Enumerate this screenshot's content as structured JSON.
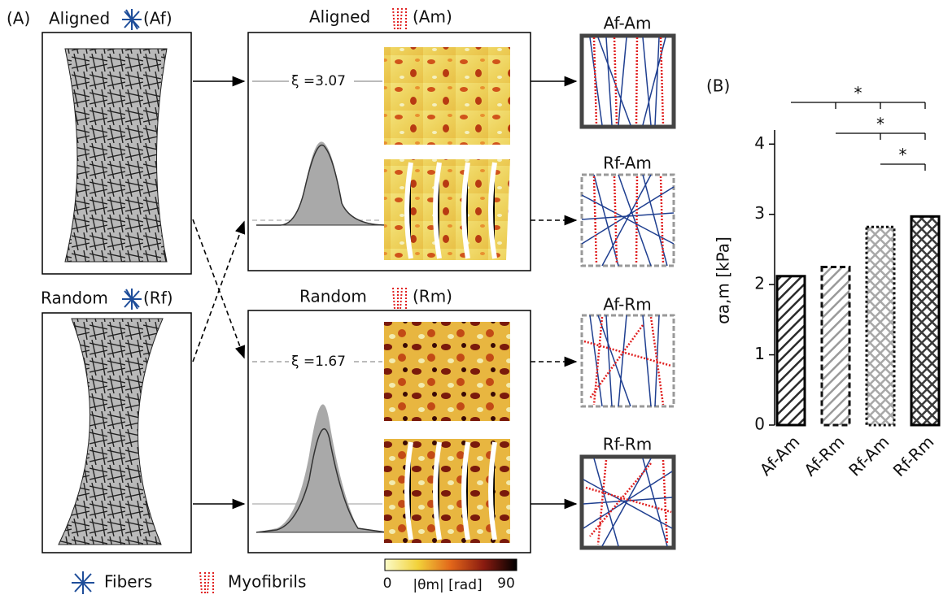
{
  "panel_a": {
    "label": "(A)",
    "aligned_fibers": "Aligned",
    "af": "(Af)",
    "random_fibers": "Random",
    "rf": "(Rf)",
    "aligned_myo": "Aligned",
    "am": "(Am)",
    "random_myo": "Random",
    "rm": "(Rm)",
    "xi_aligned": "ξ =3.07",
    "xi_random": "ξ =1.67",
    "combos": [
      "Af-Am",
      "Rf-Am",
      "Af-Rm",
      "Rf-Rm"
    ],
    "legend": {
      "fibers": "Fibers",
      "myofibrils": "Myofibrils"
    },
    "colorbar": {
      "min": "0",
      "max": "90",
      "label": "|θm| [rad]"
    }
  },
  "chart_data": {
    "type": "bar",
    "label": "(B)",
    "ylabel": "σa,m [kPa]",
    "categories": [
      "Af-Am",
      "Af-Rm",
      "Rf-Am",
      "Rf-Rm"
    ],
    "values": [
      2.12,
      2.25,
      2.82,
      2.97
    ],
    "colors": [
      "#2b2b2b",
      "#9a9a9a",
      "#a8a8a8",
      "#3a3a3a"
    ],
    "ylim": [
      0,
      4.2
    ],
    "yticks": [
      0,
      1,
      2,
      3,
      4
    ],
    "significance": [
      "*",
      "*",
      "*"
    ]
  }
}
